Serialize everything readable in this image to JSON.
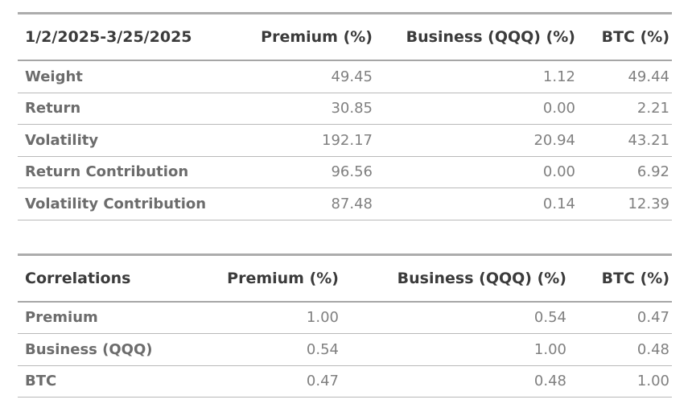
{
  "colors": {
    "background": "#ffffff",
    "header_text": "#3b3b3b",
    "row_label_text": "#6c6c6c",
    "value_text": "#808080",
    "table_top_border": "#acacac",
    "header_underline": "#a6a6a6",
    "row_border": "#b9b9b9"
  },
  "chart_data": [
    {
      "type": "table",
      "title": "1/2/2025-3/25/2025",
      "columns": [
        "1/2/2025-3/25/2025",
        "Premium (%)",
        "Business (QQQ) (%)",
        "BTC (%)"
      ],
      "rows": [
        [
          "Weight",
          "49.45",
          "1.12",
          "49.44"
        ],
        [
          "Return",
          "30.85",
          "0.00",
          "2.21"
        ],
        [
          "Volatility",
          "192.17",
          "20.94",
          "43.21"
        ],
        [
          "Return Contribution",
          "96.56",
          "0.00",
          "6.92"
        ],
        [
          "Volatility Contribution",
          "87.48",
          "0.14",
          "12.39"
        ]
      ]
    },
    {
      "type": "table",
      "title": "Correlations",
      "columns": [
        "Correlations",
        "Premium (%)",
        "Business (QQQ) (%)",
        "BTC (%)"
      ],
      "rows": [
        [
          "Premium",
          "1.00",
          "0.54",
          "0.47"
        ],
        [
          "Business (QQQ)",
          "0.54",
          "1.00",
          "0.48"
        ],
        [
          "BTC",
          "0.47",
          "0.48",
          "1.00"
        ]
      ]
    }
  ]
}
